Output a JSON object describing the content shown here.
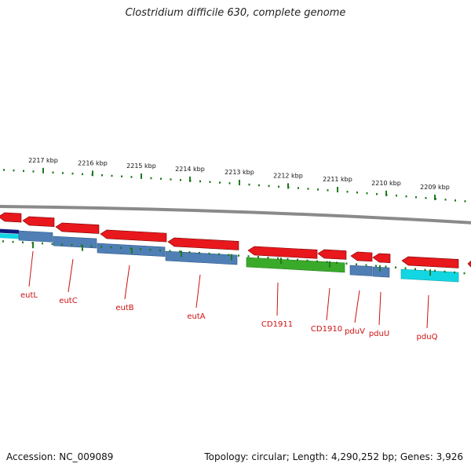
{
  "title": "Clostridium difficile 630, complete genome",
  "footer": {
    "accession": "Accession: NC_009089",
    "summary": "Topology: circular; Length: 4,290,252 bp; Genes: 3,926"
  },
  "scale": {
    "unit": "kbp",
    "tick_labels": [
      "2217 kbp",
      "2216 kbp",
      "2215 kbp",
      "2214 kbp",
      "2213 kbp",
      "2212 kbp",
      "2211 kbp",
      "2210 kbp",
      "2209 kbp"
    ]
  },
  "genes": [
    {
      "label": "eutL"
    },
    {
      "label": "eutC"
    },
    {
      "label": "eutB"
    },
    {
      "label": "eutA"
    },
    {
      "label": "CD1911"
    },
    {
      "label": "CD1910"
    },
    {
      "label": "pduV"
    },
    {
      "label": "pduU"
    },
    {
      "label": "pduQ"
    }
  ],
  "colors": {
    "cds": "#e8181c",
    "blue_track": "#4f7fb5",
    "green_track": "#3aaa2a",
    "cyan_track": "#13d6e3",
    "dark_track": "#101a7a",
    "backbone": "#8a8a8a",
    "ticks": "#1f7a1f",
    "label": "#cc1111"
  }
}
